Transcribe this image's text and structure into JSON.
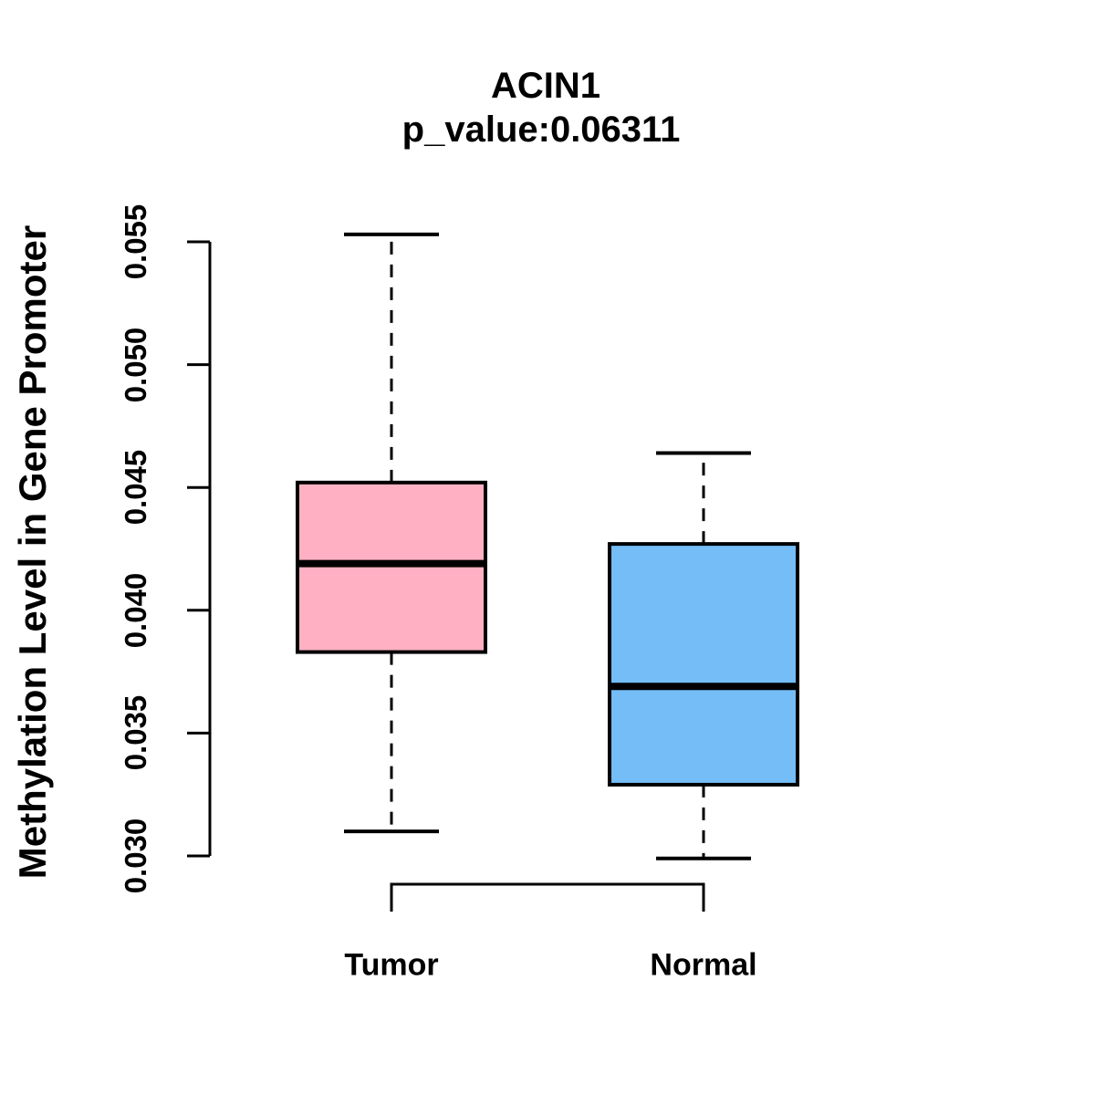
{
  "chart_data": {
    "type": "boxplot",
    "title": "ACIN1",
    "subtitle": "p_value:0.06311",
    "ylabel": "Methylation Level in Gene Promoter",
    "xlabel": "",
    "yticks": [
      0.03,
      0.035,
      0.04,
      0.045,
      0.05,
      0.055
    ],
    "ytick_labels": [
      "0.030",
      "0.035",
      "0.040",
      "0.045",
      "0.050",
      "0.055"
    ],
    "ylim": [
      0.0295,
      0.0556
    ],
    "grid": false,
    "legend": false,
    "groups": [
      {
        "label": "Tumor",
        "color": "#FFB1C3",
        "whisker_low": 0.031,
        "q1": 0.0383,
        "median": 0.0419,
        "q3": 0.0452,
        "whisker_high": 0.0553
      },
      {
        "label": "Normal",
        "color": "#74BDF7",
        "whisker_low": 0.0299,
        "q1": 0.0329,
        "median": 0.0369,
        "q3": 0.0427,
        "whisker_high": 0.0464
      }
    ],
    "x_axis_bracket": {
      "between": [
        "Tumor",
        "Normal"
      ]
    },
    "line_color": "#000000",
    "background_color": "#FFFFFF"
  }
}
